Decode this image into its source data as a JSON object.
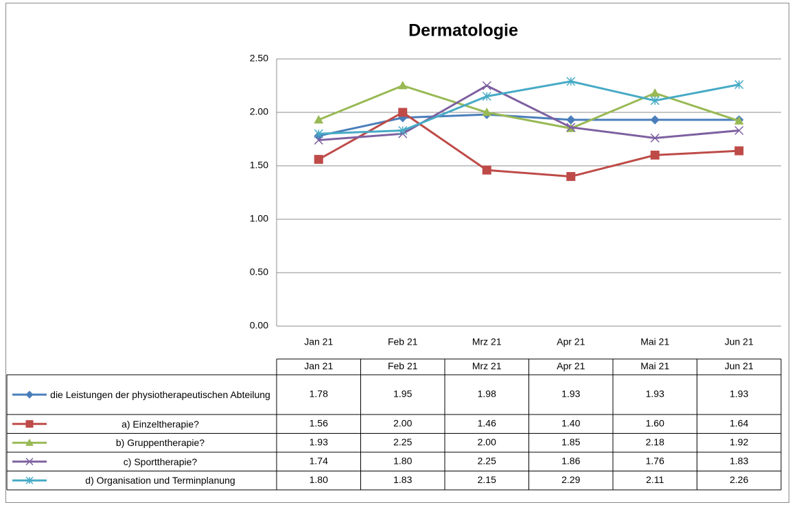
{
  "chart_data": {
    "type": "line",
    "title": "Dermatologie",
    "categories": [
      "Jan 21",
      "Feb 21",
      "Mrz 21",
      "Apr 21",
      "Mai 21",
      "Jun 21"
    ],
    "series": [
      {
        "name": "die Leistungen der physiotherapeutischen Abteilung",
        "color": "#4a7ebb",
        "marker": "diamond",
        "values": [
          1.78,
          1.95,
          1.98,
          1.93,
          1.93,
          1.93
        ],
        "value_labels": [
          "1.78",
          "1.95",
          "1.98",
          "1.93",
          "1.93",
          "1.93"
        ]
      },
      {
        "name": "a) Einzeltherapie?",
        "color": "#be4b48",
        "marker": "square",
        "values": [
          1.56,
          2.0,
          1.46,
          1.4,
          1.6,
          1.64
        ],
        "value_labels": [
          "1.56",
          "2.00",
          "1.46",
          "1.40",
          "1.60",
          "1.64"
        ]
      },
      {
        "name": "b) Gruppentherapie?",
        "color": "#98b954",
        "marker": "triangle",
        "values": [
          1.93,
          2.25,
          2.0,
          1.85,
          2.18,
          1.92
        ],
        "value_labels": [
          "1.93",
          "2.25",
          "2.00",
          "1.85",
          "2.18",
          "1.92"
        ]
      },
      {
        "name": "c) Sporttherapie?",
        "color": "#7d60a0",
        "marker": "x",
        "values": [
          1.74,
          1.8,
          2.25,
          1.86,
          1.76,
          1.83
        ],
        "value_labels": [
          "1.74",
          "1.80",
          "2.25",
          "1.86",
          "1.76",
          "1.83"
        ]
      },
      {
        "name": "d) Organisation und Terminplanung",
        "color": "#46aac5",
        "marker": "star",
        "values": [
          1.8,
          1.83,
          2.15,
          2.29,
          2.11,
          2.26
        ],
        "value_labels": [
          "1.80",
          "1.83",
          "2.15",
          "2.29",
          "2.11",
          "2.26"
        ]
      }
    ],
    "ylim": [
      0,
      2.5
    ],
    "yticks": [
      {
        "value": 0,
        "label": "0.00"
      },
      {
        "value": 0.5,
        "label": "0.50"
      },
      {
        "value": 1,
        "label": "1.00"
      },
      {
        "value": 1.5,
        "label": "1.50"
      },
      {
        "value": 2,
        "label": "2.00"
      },
      {
        "value": 2.5,
        "label": "2.50"
      }
    ],
    "grid": true,
    "legend": "data-table"
  }
}
